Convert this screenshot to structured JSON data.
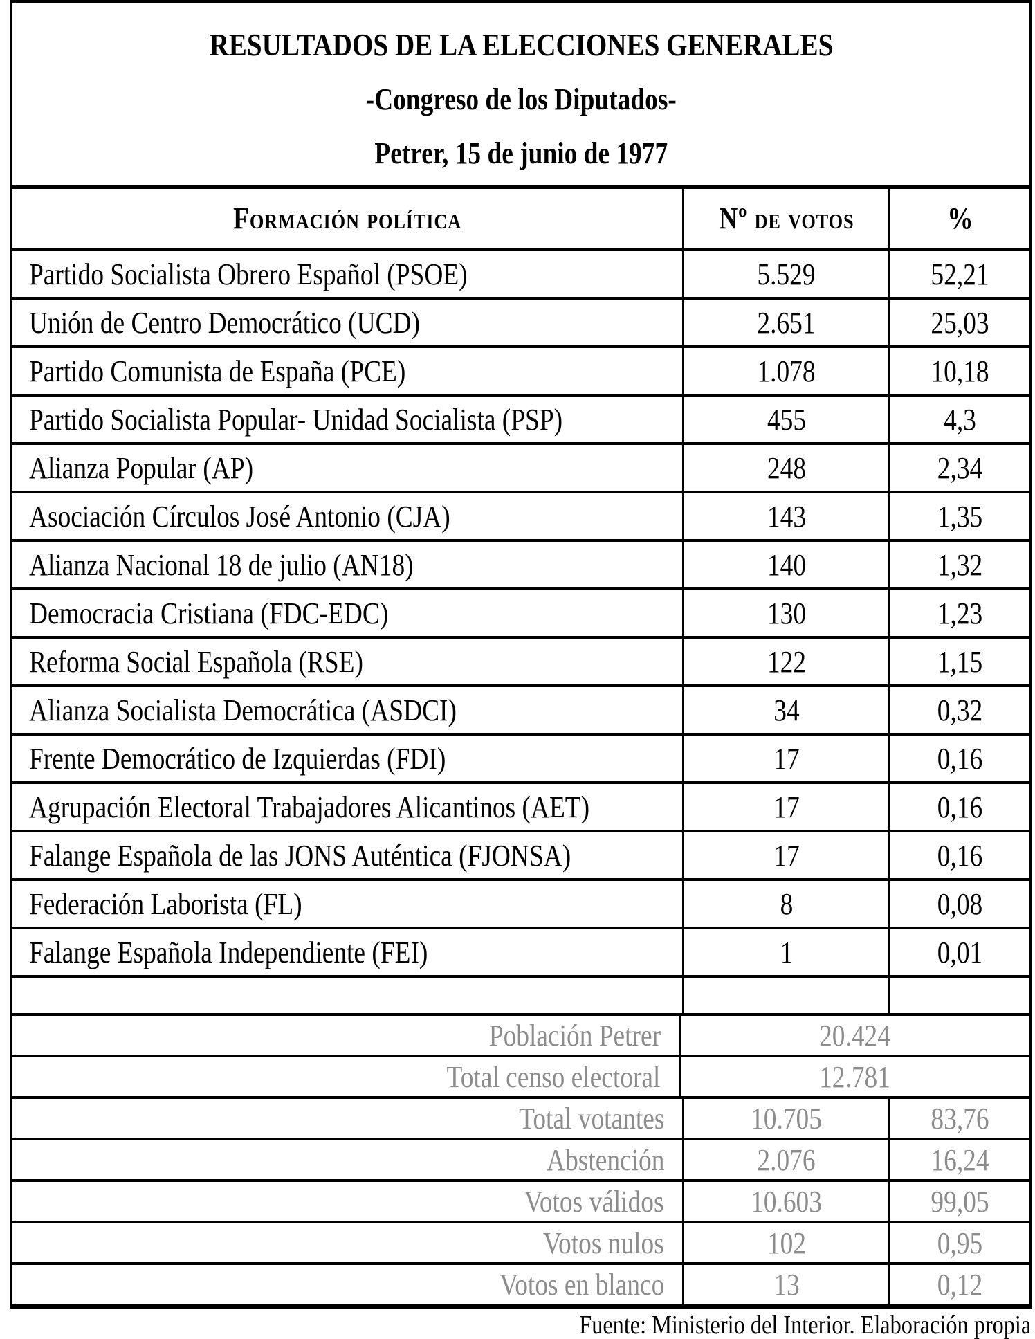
{
  "title": {
    "line1": "RESULTADOS DE LA ELECCIONES GENERALES",
    "line2": "-Congreso de los Diputados-",
    "line3": "Petrer, 15 de junio de 1977"
  },
  "table": {
    "headers": {
      "party": "Formación política",
      "votes": "Nº de votos",
      "pct": "%"
    },
    "rows": [
      {
        "name": "Partido Socialista Obrero Español (PSOE)",
        "votes": "5.529",
        "pct": "52,21"
      },
      {
        "name": "Unión de Centro Democrático (UCD)",
        "votes": "2.651",
        "pct": "25,03"
      },
      {
        "name": "Partido Comunista de España (PCE)",
        "votes": "1.078",
        "pct": "10,18"
      },
      {
        "name": "Partido Socialista Popular- Unidad Socialista (PSP)",
        "votes": "455",
        "pct": "4,3"
      },
      {
        "name": "Alianza Popular (AP)",
        "votes": "248",
        "pct": "2,34"
      },
      {
        "name": "Asociación Círculos José Antonio (CJA)",
        "votes": "143",
        "pct": "1,35"
      },
      {
        "name": "Alianza Nacional 18 de julio (AN18)",
        "votes": "140",
        "pct": "1,32"
      },
      {
        "name": "Democracia Cristiana (FDC-EDC)",
        "votes": "130",
        "pct": "1,23"
      },
      {
        "name": "Reforma Social Española (RSE)",
        "votes": "122",
        "pct": "1,15"
      },
      {
        "name": "Alianza Socialista Democrática (ASDCI)",
        "votes": "34",
        "pct": "0,32"
      },
      {
        "name": "Frente Democrático de Izquierdas (FDI)",
        "votes": "17",
        "pct": "0,16"
      },
      {
        "name": "Agrupación Electoral Trabajadores Alicantinos (AET)",
        "votes": "17",
        "pct": "0,16"
      },
      {
        "name": "Falange Española de las JONS Auténtica (FJONSA)",
        "votes": "17",
        "pct": "0,16"
      },
      {
        "name": "Federación Laborista (FL)",
        "votes": "8",
        "pct": "0,08"
      },
      {
        "name": "Falange Española Independiente (FEI)",
        "votes": "1",
        "pct": "0,01"
      }
    ],
    "summary": [
      {
        "label": "Población Petrer",
        "value": "20.424",
        "pct": null,
        "merged": true
      },
      {
        "label": "Total censo electoral",
        "value": "12.781",
        "pct": null,
        "merged": true
      },
      {
        "label": "Total votantes",
        "value": "10.705",
        "pct": "83,76",
        "merged": false
      },
      {
        "label": "Abstención",
        "value": "2.076",
        "pct": "16,24",
        "merged": false
      },
      {
        "label": "Votos válidos",
        "value": "10.603",
        "pct": "99,05",
        "merged": false
      },
      {
        "label": "Votos nulos",
        "value": "102",
        "pct": "0,95",
        "merged": false
      },
      {
        "label": "Votos en blanco",
        "value": "13",
        "pct": "0,12",
        "merged": false
      }
    ]
  },
  "footer": "Fuente: Ministerio del Interior. Elaboración propia",
  "colors": {
    "text": "#000000",
    "muted_text": "#8c8c8c",
    "border": "#000000",
    "background": "#ffffff"
  }
}
